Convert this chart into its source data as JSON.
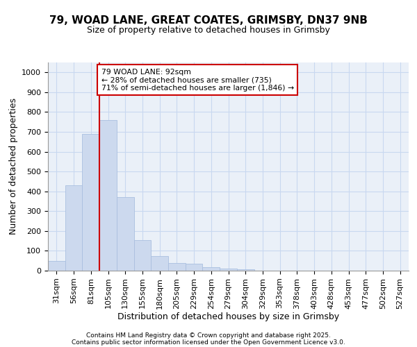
{
  "title_line1": "79, WOAD LANE, GREAT COATES, GRIMSBY, DN37 9NB",
  "title_line2": "Size of property relative to detached houses in Grimsby",
  "xlabel": "Distribution of detached houses by size in Grimsby",
  "ylabel": "Number of detached properties",
  "categories": [
    "31sqm",
    "56sqm",
    "81sqm",
    "105sqm",
    "130sqm",
    "155sqm",
    "180sqm",
    "205sqm",
    "229sqm",
    "254sqm",
    "279sqm",
    "304sqm",
    "329sqm",
    "353sqm",
    "378sqm",
    "403sqm",
    "428sqm",
    "453sqm",
    "477sqm",
    "502sqm",
    "527sqm"
  ],
  "values": [
    50,
    430,
    690,
    760,
    370,
    155,
    75,
    40,
    35,
    18,
    12,
    6,
    1,
    0,
    0,
    0,
    0,
    0,
    0,
    0,
    0
  ],
  "bar_color": "#ccd9ee",
  "bar_edge_color": "#aabfdf",
  "grid_color": "#c8d8f0",
  "vline_x": 2.5,
  "vline_color": "#cc0000",
  "annotation_box_text": "79 WOAD LANE: 92sqm\n← 28% of detached houses are smaller (735)\n71% of semi-detached houses are larger (1,846) →",
  "annotation_box_color": "#cc0000",
  "ylim": [
    0,
    1050
  ],
  "yticks": [
    0,
    100,
    200,
    300,
    400,
    500,
    600,
    700,
    800,
    900,
    1000
  ],
  "footer_line1": "Contains HM Land Registry data © Crown copyright and database right 2025.",
  "footer_line2": "Contains public sector information licensed under the Open Government Licence v3.0.",
  "background_color": "#eaf0f8",
  "title_fontsize": 11,
  "axis_fontsize": 9,
  "tick_fontsize": 8
}
